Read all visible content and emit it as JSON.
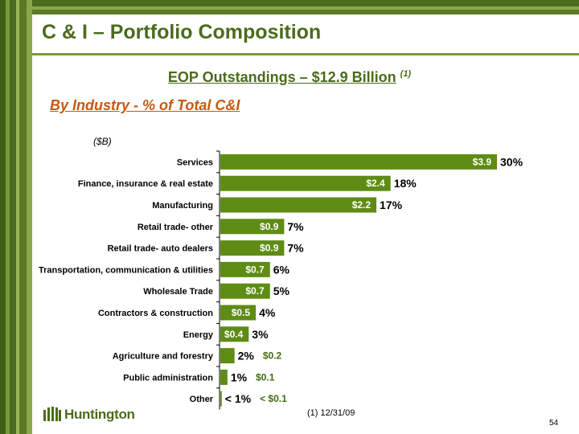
{
  "page": {
    "title": "C & I – Portfolio Composition",
    "subtitle": "EOP Outstandings – $12.9 Billion",
    "subtitle_note": "(1)",
    "section_heading": "By Industry - % of Total C&I",
    "footnote": "(1)   12/31/09",
    "page_number": "54",
    "logo_text": "Huntington",
    "colors": {
      "bar": "#5e8c14",
      "title": "#4b6b1e",
      "heading": "#c55a11",
      "inside_label": "#ffffff",
      "outside_label": "#3d6b0f"
    }
  },
  "chart_data": {
    "type": "bar",
    "orientation": "horizontal",
    "unit_label": "($B)",
    "xlim": [
      0,
      4.6
    ],
    "categories": [
      "Services",
      "Finance, insurance & real estate",
      "Manufacturing",
      "Retail trade- other",
      "Retail trade- auto dealers",
      "Transportation, communication & utilities",
      "Wholesale Trade",
      "Contractors & construction",
      "Energy",
      "Agriculture and forestry",
      "Public administration",
      "Other"
    ],
    "values": [
      3.9,
      2.4,
      2.2,
      0.9,
      0.9,
      0.7,
      0.7,
      0.5,
      0.4,
      0.2,
      0.1,
      0.02
    ],
    "value_labels": [
      "$3.9",
      "$2.4",
      "$2.2",
      "$0.9",
      "$0.9",
      "$0.7",
      "$0.7",
      "$0.5",
      "$0.4",
      "$0.2",
      "$0.1",
      "< $0.1"
    ],
    "pct_labels": [
      "30%",
      "18%",
      "17%",
      "7%",
      "7%",
      "6%",
      "5%",
      "4%",
      "3%",
      "2%",
      "1%",
      "< 1%"
    ],
    "value_label_position": [
      "inside",
      "inside",
      "inside",
      "inside",
      "inside",
      "inside",
      "inside",
      "inside",
      "inside",
      "outside",
      "outside",
      "outside"
    ]
  }
}
